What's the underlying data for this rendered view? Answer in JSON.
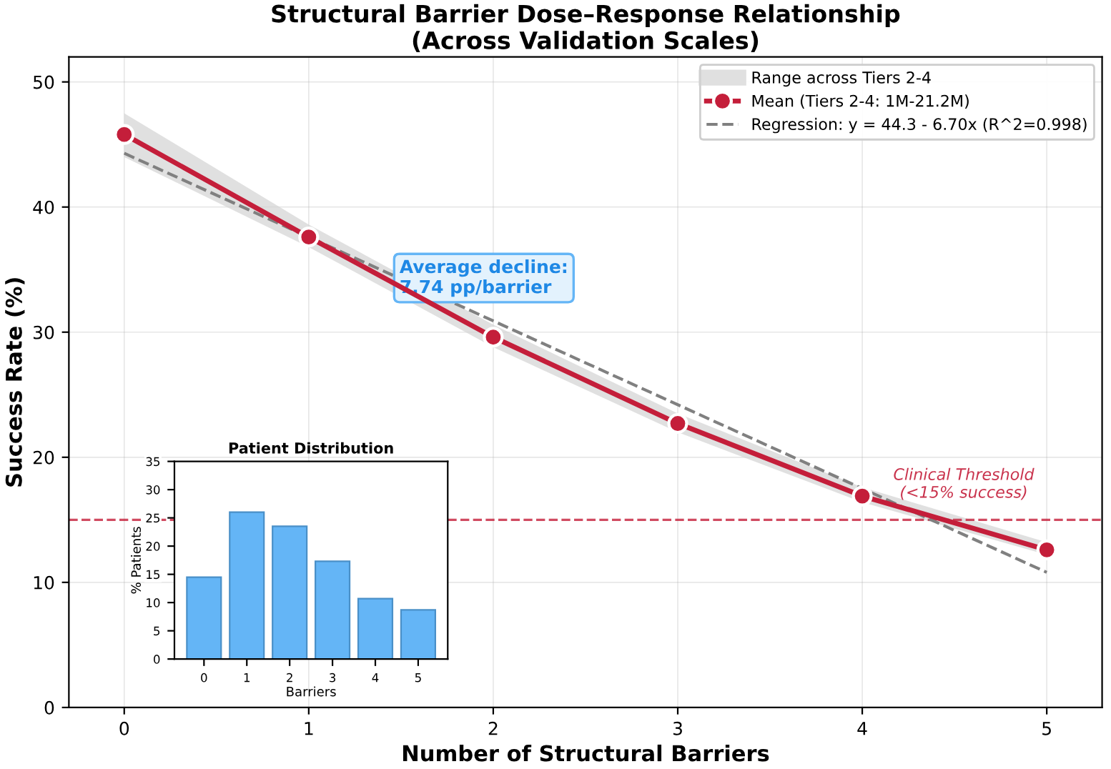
{
  "chart_data": [
    {
      "type": "line",
      "title": "Structural Barrier Dose–Response Relationship\n(Across Validation Scales)",
      "xlabel": "Number of Structural Barriers",
      "ylabel": "Success Rate (%)",
      "xlim": [
        -0.3,
        5.3
      ],
      "xticks": [
        0,
        1,
        2,
        3,
        4,
        5
      ],
      "ylim": [
        0,
        52
      ],
      "yticks": [
        0,
        10,
        20,
        30,
        40,
        50
      ],
      "grid": true,
      "legend": "top right",
      "series": [
        {
          "type": "line",
          "name": "Mean (Tiers 2-4: 1M-21.2M)",
          "color": "#c41e3a",
          "x": [
            0,
            1,
            2,
            3,
            4,
            5
          ],
          "values": [
            45.8,
            37.6,
            29.6,
            22.7,
            16.9,
            12.6
          ],
          "lower": [
            44.0,
            36.8,
            28.8,
            22.0,
            16.4,
            12.2
          ],
          "upper": [
            47.5,
            38.6,
            30.6,
            23.5,
            17.6,
            13.2
          ],
          "marker": "circle",
          "line_style": "solid"
        },
        {
          "type": "line",
          "name": "Regression: y = 44.3 - 6.70x (R^2=0.998)",
          "color": "#808080",
          "x": [
            0,
            5
          ],
          "values": [
            44.3,
            10.8
          ],
          "marker": "none",
          "line_style": "dashed"
        }
      ],
      "ref_lines": [
        {
          "axis": "y",
          "value": 15,
          "label": "Clinical Threshold\n(<15% success)",
          "color": "#c41e3a",
          "line_style": "dashed"
        }
      ],
      "annotations": [
        "Average decline:\n7.74 pp/barrier",
        "Range across Tiers 2-4"
      ]
    },
    {
      "type": "bar",
      "title": "Patient Distribution",
      "xlabel": "Barriers",
      "ylabel": "% Patients",
      "categories": [
        "0",
        "1",
        "2",
        "3",
        "4",
        "5"
      ],
      "values": [
        14.5,
        26,
        23.5,
        17.3,
        10.7,
        8.7
      ],
      "color": "#64b5f6",
      "ylim": [
        0,
        35
      ],
      "yticks": [
        0,
        5,
        10,
        15,
        20,
        25,
        30,
        35
      ]
    }
  ]
}
